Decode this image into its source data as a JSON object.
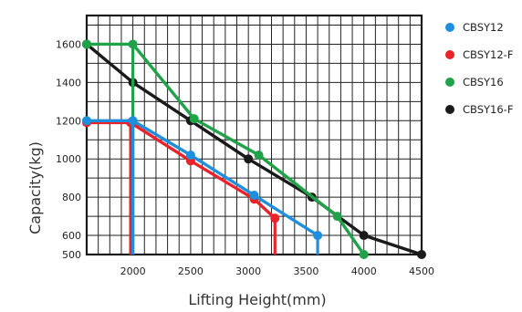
{
  "chart_data": {
    "type": "line",
    "title": "",
    "xlabel": "Lifting Height(mm)",
    "ylabel": "Capacity(kg)",
    "xlim": [
      1600,
      4500
    ],
    "ylim": [
      500,
      1750
    ],
    "x_ticks": [
      2000,
      2500,
      3000,
      3500,
      4000,
      4500
    ],
    "y_ticks": [
      500,
      600,
      800,
      1000,
      1200,
      1400,
      1600
    ],
    "grid": true,
    "legend_position": "right",
    "series": [
      {
        "name": "CBSY12",
        "color": "#1e8fdc",
        "points": [
          [
            1600,
            1200
          ],
          [
            2000,
            1200
          ],
          [
            2500,
            1020
          ],
          [
            3050,
            810
          ],
          [
            3600,
            600
          ]
        ],
        "drop_x": [
          2000,
          3600
        ]
      },
      {
        "name": "CBSY12-F",
        "color": "#e8232a",
        "points": [
          [
            1600,
            1190
          ],
          [
            1980,
            1190
          ],
          [
            2500,
            990
          ],
          [
            3050,
            790
          ],
          [
            3230,
            690
          ]
        ],
        "drop_x": [
          1980,
          3230
        ]
      },
      {
        "name": "CBSY16",
        "color": "#20a248",
        "points": [
          [
            1600,
            1600
          ],
          [
            2000,
            1600
          ],
          [
            2530,
            1210
          ],
          [
            3090,
            1020
          ],
          [
            3770,
            700
          ],
          [
            4000,
            500
          ]
        ],
        "drop_x": [
          2000
        ]
      },
      {
        "name": "CBSY16-F",
        "color": "#1a1a1a",
        "points": [
          [
            1600,
            1600
          ],
          [
            2000,
            1400
          ],
          [
            2500,
            1200
          ],
          [
            3000,
            1000
          ],
          [
            3550,
            800
          ],
          [
            4000,
            600
          ],
          [
            4500,
            500
          ]
        ],
        "drop_x": []
      }
    ]
  }
}
